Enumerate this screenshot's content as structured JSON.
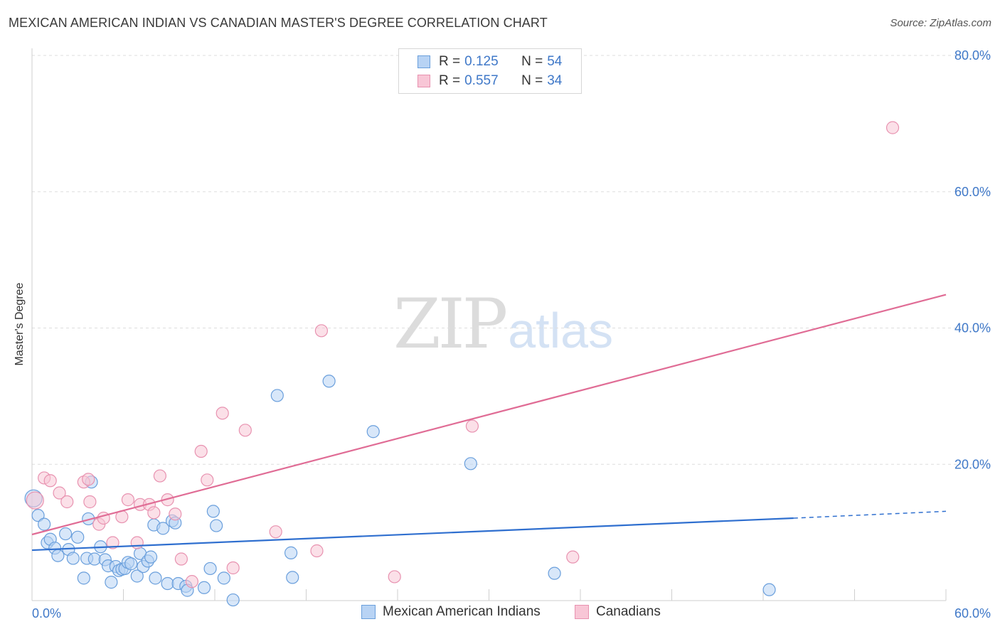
{
  "title": "MEXICAN AMERICAN INDIAN VS CANADIAN MASTER'S DEGREE CORRELATION CHART",
  "source": "Source: ZipAtlas.com",
  "watermark": {
    "zip": "ZIP",
    "atlas": "atlas"
  },
  "legend": {
    "rows": [
      {
        "r_label": "R =",
        "r_value": "0.125",
        "n_label": "N =",
        "n_value": "54"
      },
      {
        "r_label": "R =",
        "r_value": "0.557",
        "n_label": "N =",
        "n_value": "34"
      }
    ]
  },
  "chart_data": {
    "type": "scatter",
    "title": "MEXICAN AMERICAN INDIAN VS CANADIAN MASTER'S DEGREE CORRELATION CHART",
    "xlabel": "",
    "ylabel": "Master's Degree",
    "xlim": [
      0,
      60
    ],
    "ylim": [
      0,
      80
    ],
    "x_tick_labels": [
      "0.0%",
      "60.0%"
    ],
    "y_tick_labels": [
      "20.0%",
      "40.0%",
      "60.0%",
      "80.0%"
    ],
    "y_ticks": [
      20,
      40,
      60,
      80
    ],
    "grid": true,
    "legend_position": "bottom",
    "colors": {
      "series0_fill": "#b8d3f4",
      "series0_stroke": "#6a9fdc",
      "series0_line": "#2f6fcf",
      "series1_fill": "#f8c6d6",
      "series1_stroke": "#e892b0",
      "series1_line": "#e06c95",
      "axis_label": "#3f78c8"
    },
    "series": [
      {
        "name": "Mexican American Indians",
        "r": 0.125,
        "n": 54,
        "trend": {
          "x0": 0,
          "y0": 7.4,
          "x1": 50,
          "y1": 12.1,
          "dashed_to_x": 60,
          "dashed_to_y": 13.1
        },
        "points": [
          [
            0.1,
            15.0
          ],
          [
            0.4,
            12.5
          ],
          [
            0.8,
            11.2
          ],
          [
            1.0,
            8.5
          ],
          [
            1.2,
            9.0
          ],
          [
            1.5,
            7.7
          ],
          [
            1.7,
            6.6
          ],
          [
            2.2,
            9.8
          ],
          [
            2.4,
            7.5
          ],
          [
            2.7,
            6.2
          ],
          [
            3.0,
            9.3
          ],
          [
            3.4,
            3.3
          ],
          [
            3.6,
            6.2
          ],
          [
            3.7,
            12.0
          ],
          [
            3.9,
            17.4
          ],
          [
            4.1,
            6.1
          ],
          [
            4.5,
            7.9
          ],
          [
            4.8,
            6.0
          ],
          [
            5.0,
            5.1
          ],
          [
            5.2,
            2.7
          ],
          [
            5.5,
            5.0
          ],
          [
            5.7,
            4.4
          ],
          [
            5.9,
            4.6
          ],
          [
            6.1,
            4.7
          ],
          [
            6.3,
            5.6
          ],
          [
            6.5,
            5.4
          ],
          [
            6.9,
            3.6
          ],
          [
            7.1,
            6.9
          ],
          [
            7.3,
            5.0
          ],
          [
            7.6,
            5.8
          ],
          [
            7.8,
            6.4
          ],
          [
            8.0,
            11.1
          ],
          [
            8.1,
            3.3
          ],
          [
            8.6,
            10.6
          ],
          [
            8.9,
            2.5
          ],
          [
            9.2,
            11.7
          ],
          [
            9.4,
            11.4
          ],
          [
            9.6,
            2.5
          ],
          [
            10.1,
            2.1
          ],
          [
            10.2,
            1.5
          ],
          [
            11.3,
            1.9
          ],
          [
            11.7,
            4.7
          ],
          [
            11.9,
            13.1
          ],
          [
            12.1,
            11.0
          ],
          [
            12.6,
            3.3
          ],
          [
            13.2,
            0.1
          ],
          [
            16.1,
            30.1
          ],
          [
            17.0,
            7.0
          ],
          [
            17.1,
            3.4
          ],
          [
            19.5,
            32.2
          ],
          [
            22.4,
            24.8
          ],
          [
            28.8,
            20.1
          ],
          [
            34.3,
            4.0
          ],
          [
            48.4,
            1.6
          ]
        ]
      },
      {
        "name": "Canadians",
        "r": 0.557,
        "n": 34,
        "trend": {
          "x0": 0,
          "y0": 9.7,
          "x1": 60,
          "y1": 44.9
        },
        "points": [
          [
            0.2,
            14.7
          ],
          [
            0.8,
            18.0
          ],
          [
            1.2,
            17.6
          ],
          [
            1.8,
            15.8
          ],
          [
            2.3,
            14.5
          ],
          [
            3.4,
            17.4
          ],
          [
            3.7,
            17.8
          ],
          [
            3.8,
            14.5
          ],
          [
            4.4,
            11.2
          ],
          [
            4.7,
            12.1
          ],
          [
            5.3,
            8.5
          ],
          [
            5.9,
            12.3
          ],
          [
            6.3,
            14.8
          ],
          [
            6.9,
            8.5
          ],
          [
            7.1,
            14.1
          ],
          [
            7.7,
            14.1
          ],
          [
            8.0,
            12.9
          ],
          [
            8.4,
            18.3
          ],
          [
            8.9,
            14.8
          ],
          [
            9.4,
            12.7
          ],
          [
            9.8,
            6.1
          ],
          [
            10.5,
            2.8
          ],
          [
            11.1,
            21.9
          ],
          [
            11.5,
            17.7
          ],
          [
            12.5,
            27.5
          ],
          [
            13.2,
            4.8
          ],
          [
            14.0,
            25.0
          ],
          [
            16.0,
            10.1
          ],
          [
            18.7,
            7.3
          ],
          [
            19.0,
            39.6
          ],
          [
            23.8,
            3.5
          ],
          [
            28.9,
            25.6
          ],
          [
            35.5,
            6.4
          ],
          [
            56.5,
            69.4
          ]
        ]
      }
    ]
  }
}
